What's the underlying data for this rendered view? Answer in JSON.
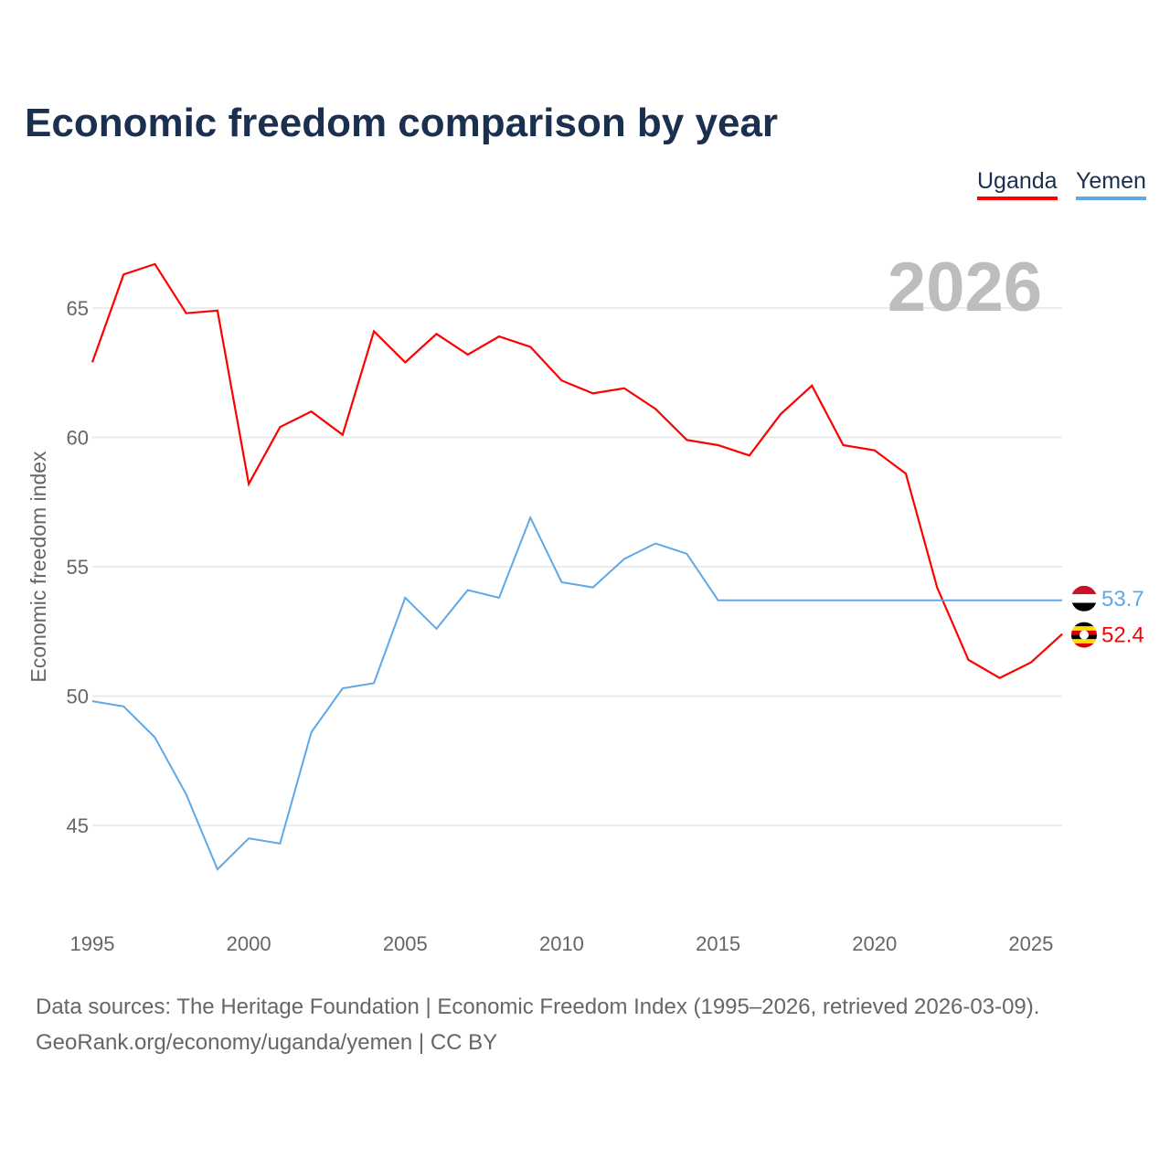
{
  "title": "Economic freedom comparison by year",
  "footer": {
    "line1": "Data sources: The Heritage Foundation | Economic Freedom Index (1995–2026, retrieved 2026-03-09).",
    "line2": "GeoRank.org/economy/uganda/yemen | CC BY"
  },
  "chart_data": {
    "type": "line",
    "title": "Economic freedom comparison by year",
    "ylabel": "Economic freedom index",
    "xlabel": "",
    "year_label": "2026",
    "xlim": [
      1995,
      2026
    ],
    "ylim": [
      41.5,
      67.5
    ],
    "xticks": [
      "1995",
      "2000",
      "2005",
      "2010",
      "2015",
      "2020",
      "2025"
    ],
    "yticks": [
      "45",
      "50",
      "55",
      "60",
      "65"
    ],
    "grid": true,
    "legend_position": "top-right",
    "x": [
      1995,
      1996,
      1997,
      1998,
      1999,
      2000,
      2001,
      2002,
      2003,
      2004,
      2005,
      2006,
      2007,
      2008,
      2009,
      2010,
      2011,
      2012,
      2013,
      2014,
      2015,
      2016,
      2017,
      2018,
      2019,
      2020,
      2021,
      2022,
      2023,
      2024,
      2025,
      2026
    ],
    "series": [
      {
        "name": "Uganda",
        "color": "#ff0000",
        "end_label": "52.4",
        "flag": "uganda-flag",
        "values": [
          62.9,
          66.3,
          66.7,
          64.8,
          64.9,
          58.2,
          60.4,
          61.0,
          60.1,
          64.1,
          62.9,
          64.0,
          63.2,
          63.9,
          63.5,
          62.2,
          61.7,
          61.9,
          61.1,
          59.9,
          59.7,
          59.3,
          60.9,
          62.0,
          59.7,
          59.5,
          58.6,
          54.2,
          51.4,
          50.7,
          51.3,
          52.4
        ]
      },
      {
        "name": "Yemen",
        "color": "#5fa8e8",
        "end_label": "53.7",
        "flag": "yemen-flag",
        "values": [
          49.8,
          49.6,
          48.4,
          46.2,
          43.3,
          44.5,
          44.3,
          48.6,
          50.3,
          50.5,
          53.8,
          52.6,
          54.1,
          53.8,
          56.9,
          54.4,
          54.2,
          55.3,
          55.9,
          55.5,
          53.7,
          53.7,
          53.7,
          53.7,
          53.7,
          53.7,
          53.7,
          53.7,
          53.7,
          53.7,
          53.7,
          53.7
        ]
      }
    ]
  }
}
